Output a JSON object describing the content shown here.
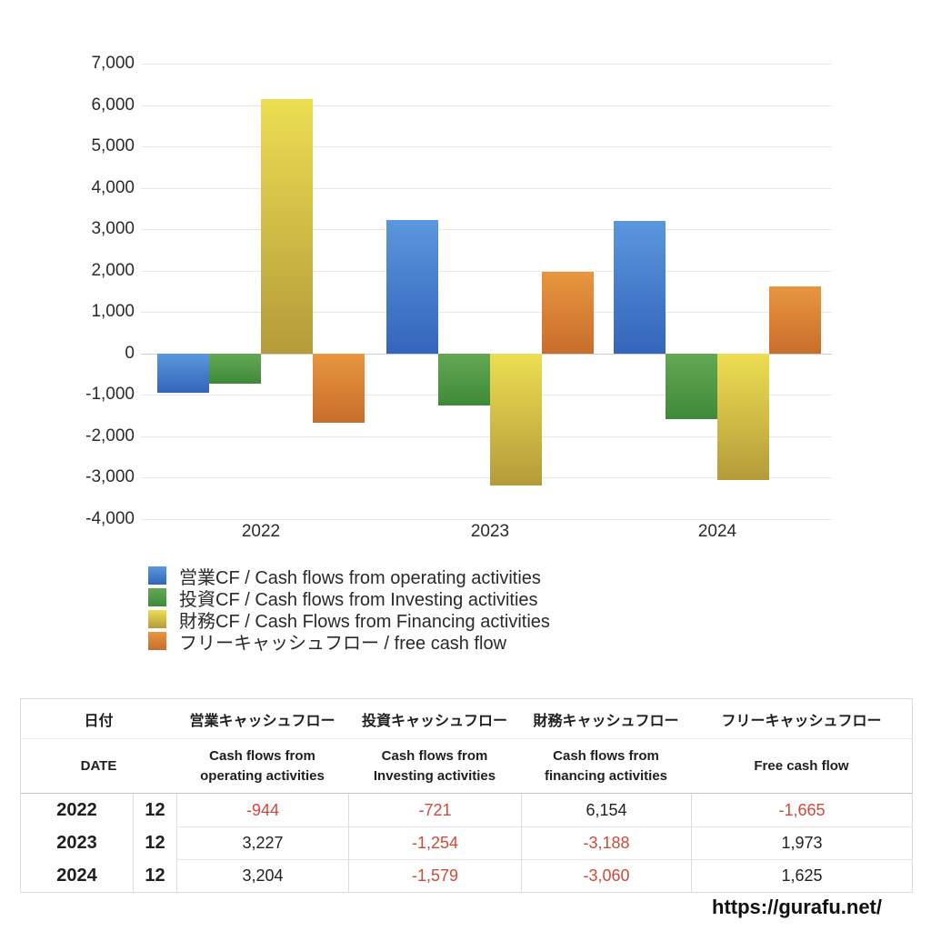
{
  "chart_data": {
    "type": "bar",
    "title": "",
    "categories": [
      "2022",
      "2023",
      "2024"
    ],
    "series": [
      {
        "key": "operating",
        "name": "営業CF / Cash flows from operating activities",
        "values": [
          -944,
          3227,
          3204
        ],
        "color_top": "#5a97dd",
        "color_bottom": "#3465bb"
      },
      {
        "key": "investing",
        "name": "投資CF / Cash flows from Investing activities",
        "values": [
          -721,
          -1254,
          -1579
        ],
        "color_top": "#64a854",
        "color_bottom": "#3e8a38"
      },
      {
        "key": "financing",
        "name": "財務CF / Cash Flows from Financing activities",
        "values": [
          6154,
          -3188,
          -3060
        ],
        "color_top": "#ecde52",
        "color_bottom": "#b59b3a"
      },
      {
        "key": "free",
        "name": "フリーキャッシュフロー / free cash flow",
        "values": [
          -1665,
          1973,
          1625
        ],
        "color_top": "#e8963f",
        "color_bottom": "#c76e2b"
      }
    ],
    "ylim": [
      -4000,
      7000
    ],
    "ytick_step": 1000,
    "grid": true,
    "legend_position": "bottom-left"
  },
  "table": {
    "header_jp": [
      "日付",
      "営業キャッシュフロー",
      "投資キャッシュフロー",
      "財務キャッシュフロー",
      "フリーキャッシュフロー"
    ],
    "header_en": [
      "DATE",
      "Cash flows from\noperating activities",
      "Cash flows from\nInvesting activities",
      "Cash flows from\nfinancing activities",
      "Free cash flow"
    ],
    "rows": [
      {
        "year": "2022",
        "month": "12",
        "values": [
          "-944",
          "-721",
          "6,154",
          "-1,665"
        ]
      },
      {
        "year": "2023",
        "month": "12",
        "values": [
          "3,227",
          "-1,254",
          "-3,188",
          "1,973"
        ]
      },
      {
        "year": "2024",
        "month": "12",
        "values": [
          "3,204",
          "-1,579",
          "-3,060",
          "1,625"
        ]
      }
    ],
    "negative_color": "#d2493a",
    "positive_color": "#222222"
  },
  "footer": {
    "url": "https://gurafu.net/"
  }
}
